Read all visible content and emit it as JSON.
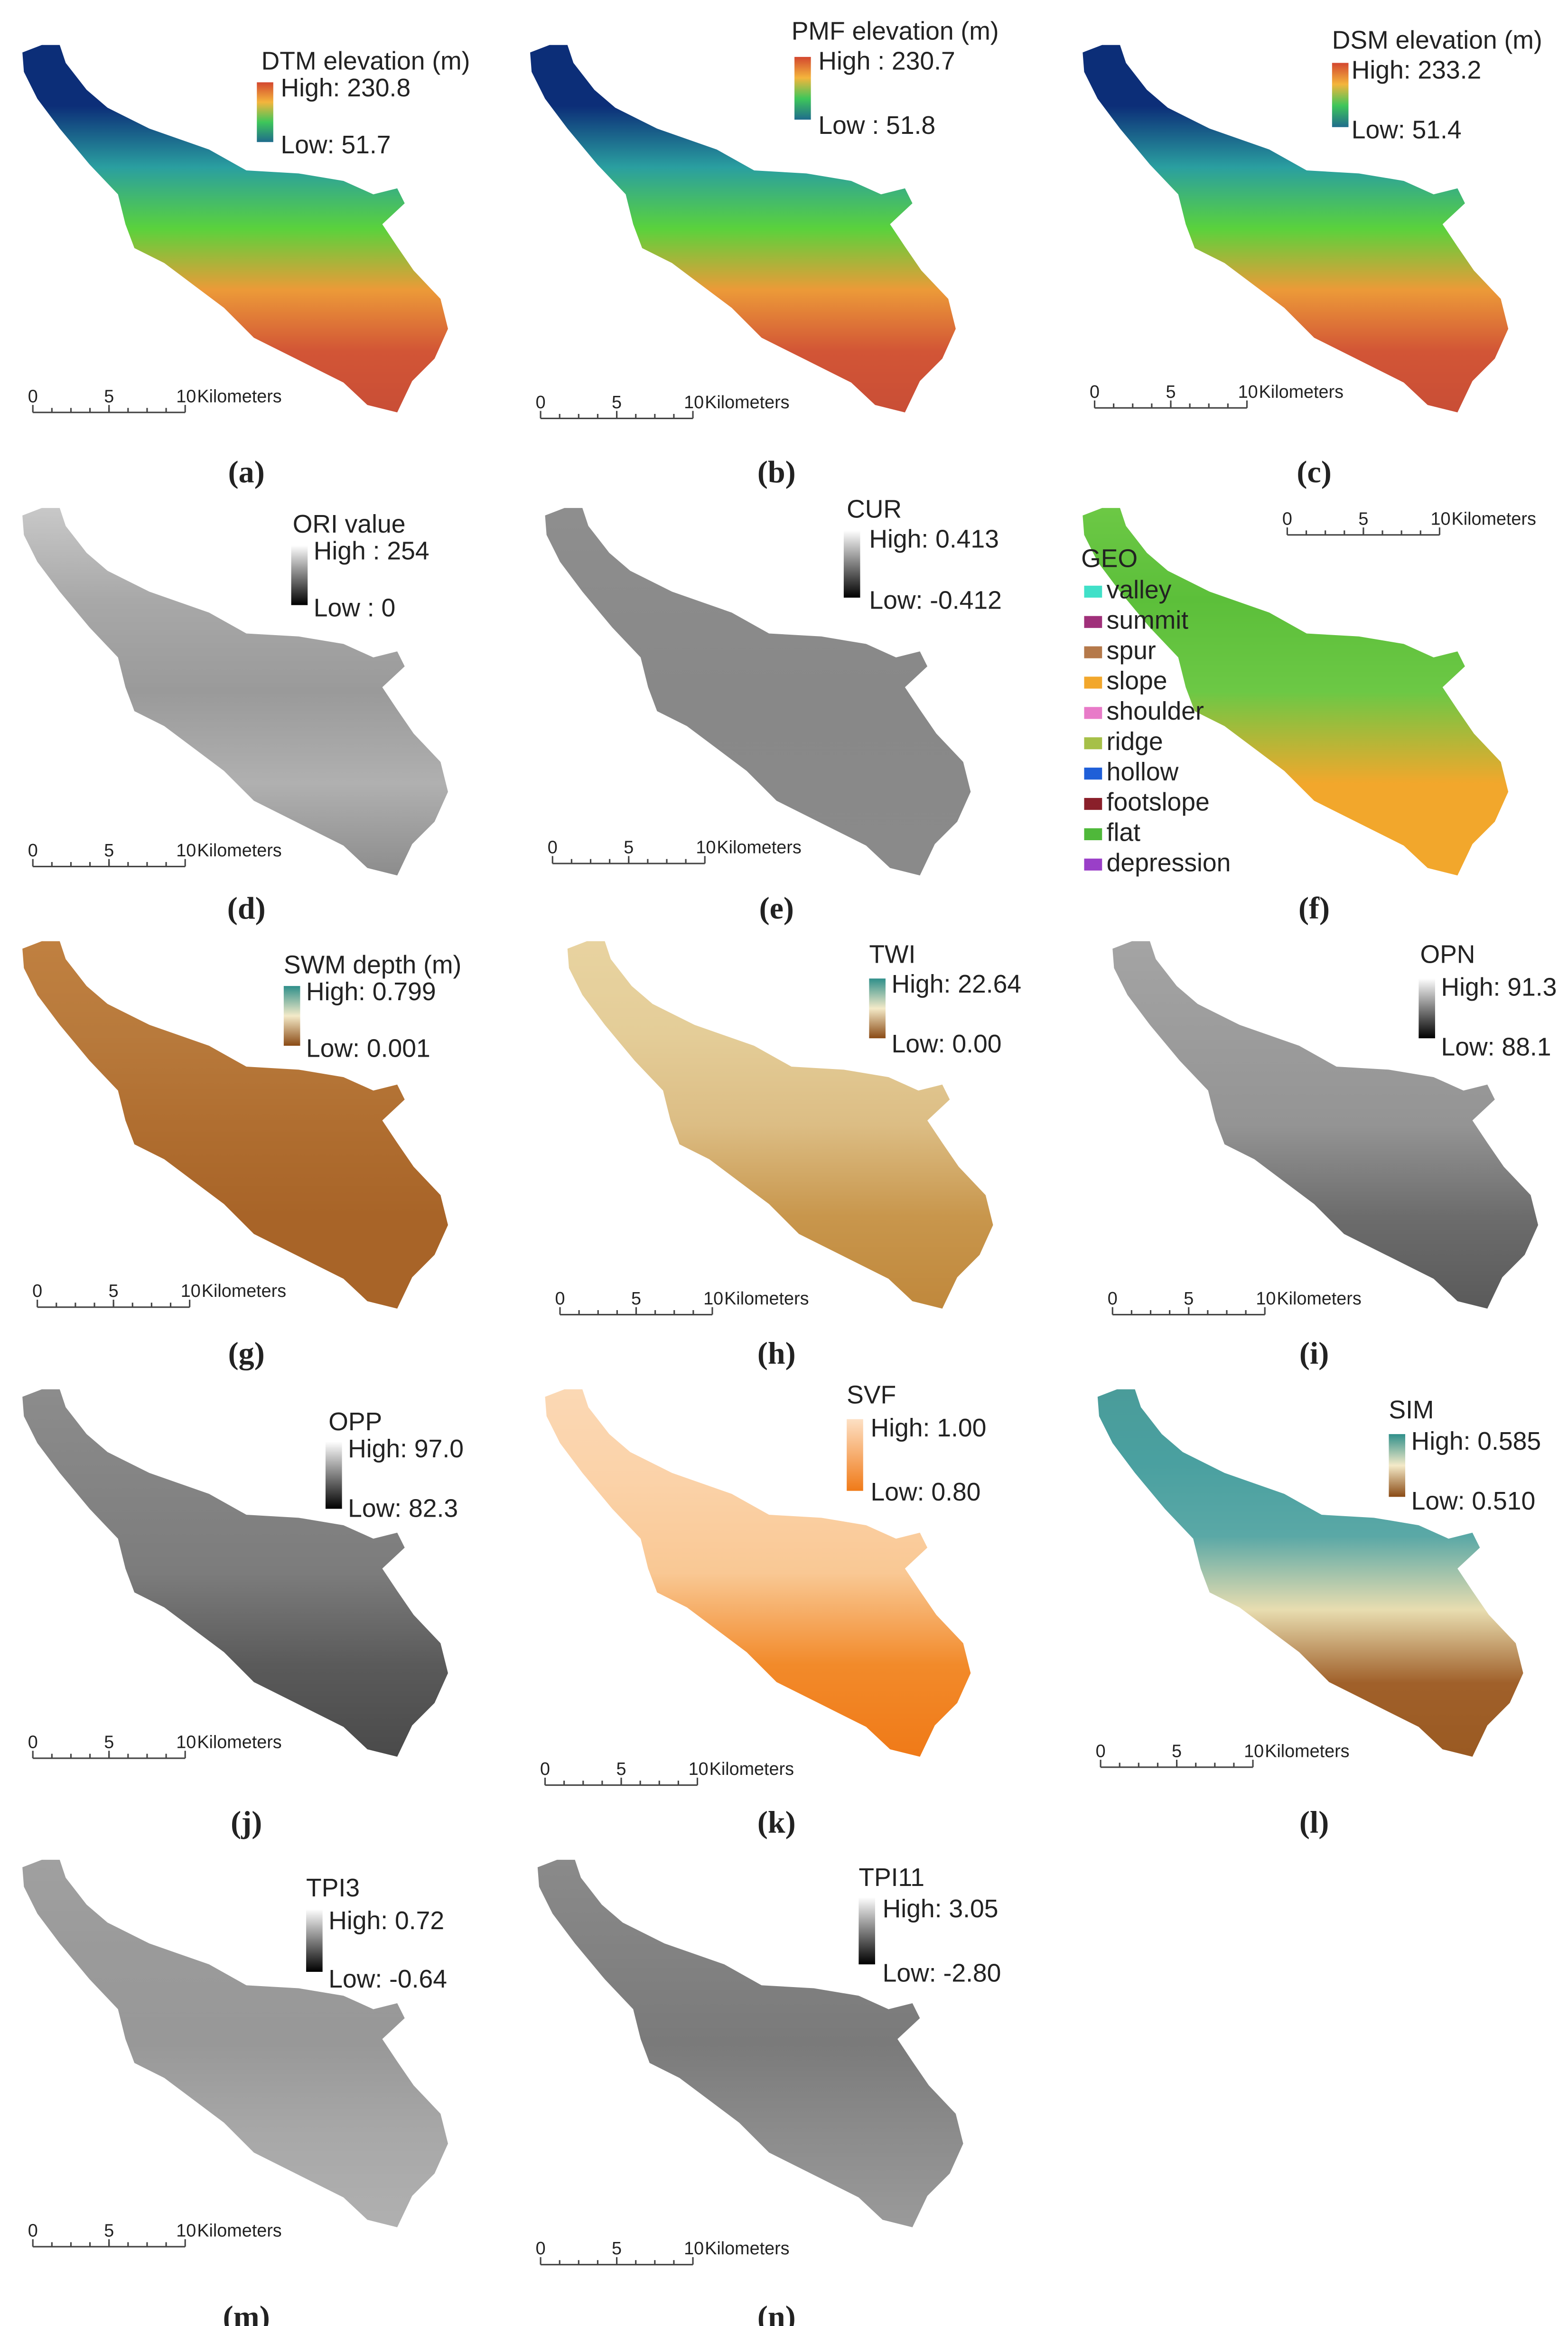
{
  "panels": [
    {
      "label": "(a)",
      "legend_title": "DTM elevation (m)",
      "high": "High: 230.8",
      "low": "Low: 51.7",
      "scale": [
        "0",
        "5",
        "10"
      ],
      "unit": "Kilometers",
      "ramp": [
        "#d3472f",
        "#f4b53c",
        "#3ec65a",
        "#1f6c8c"
      ],
      "map_colors": [
        "#0c2e78",
        "#0c2e78",
        "#2a9fa0",
        "#5ad23c",
        "#ec9a38",
        "#d25536",
        "#c94e36"
      ]
    },
    {
      "label": "(b)",
      "legend_title": "PMF elevation (m)",
      "high": "High : 230.7",
      "low": "Low : 51.8",
      "scale": [
        "0",
        "5",
        "10"
      ],
      "unit": "Kilometers",
      "ramp": [
        "#d3472f",
        "#f4b53c",
        "#3ec65a",
        "#1f6c8c"
      ],
      "map_colors": [
        "#0c2e78",
        "#0c2e78",
        "#2a9fa0",
        "#5ad23c",
        "#ec9a38",
        "#d25536",
        "#c94e36"
      ]
    },
    {
      "label": "(c)",
      "legend_title": "DSM elevation (m)",
      "high": "High: 233.2",
      "low": "Low: 51.4",
      "scale": [
        "0",
        "5",
        "10"
      ],
      "unit": "Kilometers",
      "ramp": [
        "#d3472f",
        "#f4b53c",
        "#3ec65a",
        "#1f6c8c"
      ],
      "map_colors": [
        "#0c2e78",
        "#0c2e78",
        "#2a9fa0",
        "#5ad23c",
        "#ec9a38",
        "#d25536",
        "#c94e36"
      ]
    },
    {
      "label": "(d)",
      "legend_title": "ORI value",
      "high": "High : 254",
      "low": "Low : 0",
      "scale": [
        "0",
        "5",
        "10"
      ],
      "unit": "Kilometers",
      "ramp": [
        "#ffffff",
        "#000000"
      ],
      "map_colors": [
        "#c8c8c8",
        "#a8a8a8",
        "#9a9a9a",
        "#b0b0b0",
        "#8c8c8c"
      ]
    },
    {
      "label": "(e)",
      "legend_title": "CUR",
      "high": "High: 0.413",
      "low": "Low: -0.412",
      "scale": [
        "0",
        "5",
        "10"
      ],
      "unit": "Kilometers",
      "ramp": [
        "#ffffff",
        "#000000"
      ],
      "map_colors": [
        "#8e8e8e",
        "#888888",
        "#8a8a8a"
      ]
    },
    {
      "label": "(f)",
      "legend_title": "GEO",
      "scale": [
        "0",
        "5",
        "10"
      ],
      "unit": "Kilometers",
      "map_colors": [
        "#6cc845",
        "#5cbf3a",
        "#6cc845",
        "#f2a72c",
        "#f2a72c"
      ],
      "classes": [
        {
          "name": "valley",
          "color": "#40e0c8"
        },
        {
          "name": "summit",
          "color": "#a0307a"
        },
        {
          "name": "spur",
          "color": "#b5794a"
        },
        {
          "name": "slope",
          "color": "#f2a72c"
        },
        {
          "name": "shoulder",
          "color": "#e87ac8"
        },
        {
          "name": "ridge",
          "color": "#a6c048"
        },
        {
          "name": "hollow",
          "color": "#1f5fd8"
        },
        {
          "name": "footslope",
          "color": "#8a1f2a"
        },
        {
          "name": "flat",
          "color": "#4fb83a"
        },
        {
          "name": "depression",
          "color": "#9a3fc8"
        }
      ]
    },
    {
      "label": "(g)",
      "legend_title": "SWM depth (m)",
      "high": "High: 0.799",
      "low": "Low: 0.001",
      "scale": [
        "0",
        "5",
        "10"
      ],
      "unit": "Kilometers",
      "ramp": [
        "#2f8f8a",
        "#f4eac8",
        "#8a4a14"
      ],
      "map_colors": [
        "#c08040",
        "#b87a3c",
        "#b06e30",
        "#a86428",
        "#a86428"
      ]
    },
    {
      "label": "(h)",
      "legend_title": "TWI",
      "high": "High: 22.64",
      "low": "Low: 0.00",
      "scale": [
        "0",
        "5",
        "10"
      ],
      "unit": "Kilometers",
      "ramp": [
        "#2f8f8a",
        "#f4eac8",
        "#8a4a14"
      ],
      "map_colors": [
        "#e8d3a0",
        "#e4cd98",
        "#dcbd84",
        "#c8964c",
        "#c0883c"
      ]
    },
    {
      "label": "(i)",
      "legend_title": "OPN",
      "high": "High: 91.3",
      "low": "Low: 88.1",
      "scale": [
        "0",
        "5",
        "10"
      ],
      "unit": "Kilometers",
      "ramp": [
        "#ffffff",
        "#000000"
      ],
      "map_colors": [
        "#a4a4a4",
        "#9c9c9c",
        "#949494",
        "#6c6c6c",
        "#5a5a5a"
      ]
    },
    {
      "label": "(j)",
      "legend_title": "OPP",
      "high": "High: 97.0",
      "low": "Low: 82.3",
      "scale": [
        "0",
        "5",
        "10"
      ],
      "unit": "Kilometers",
      "ramp": [
        "#ffffff",
        "#000000"
      ],
      "map_colors": [
        "#8c8c8c",
        "#848484",
        "#7c7c7c",
        "#5a5a5a",
        "#4a4a4a"
      ]
    },
    {
      "label": "(k)",
      "legend_title": "SVF",
      "high": "High: 1.00",
      "low": "Low: 0.80",
      "scale": [
        "0",
        "5",
        "10"
      ],
      "unit": "Kilometers",
      "ramp": [
        "#fde0c4",
        "#f07a18"
      ],
      "map_colors": [
        "#fbd8b4",
        "#fbd2a8",
        "#f9c894",
        "#f28a2a",
        "#f07a18"
      ]
    },
    {
      "label": "(l)",
      "legend_title": "SIM",
      "high": "High: 0.585",
      "low": "Low: 0.510",
      "scale": [
        "0",
        "5",
        "10"
      ],
      "unit": "Kilometers",
      "ramp": [
        "#2f8f8a",
        "#f4eac8",
        "#8a4a14"
      ],
      "map_colors": [
        "#4a9c9a",
        "#4aa0a0",
        "#5aa8a6",
        "#e8ddb0",
        "#a0602a",
        "#9a5a22"
      ]
    },
    {
      "label": "(m)",
      "legend_title": "TPI3",
      "high": "High: 0.72",
      "low": "Low: -0.64",
      "scale": [
        "0",
        "5",
        "10"
      ],
      "unit": "Kilometers",
      "ramp": [
        "#ffffff",
        "#000000"
      ],
      "map_colors": [
        "#a0a0a0",
        "#9a9a9a",
        "#989898",
        "#a8a8a8",
        "#b0b0b0"
      ]
    },
    {
      "label": "(n)",
      "legend_title": "TPI11",
      "high": "High: 3.05",
      "low": "Low: -2.80",
      "scale": [
        "0",
        "5",
        "10"
      ],
      "unit": "Kilometers",
      "ramp": [
        "#ffffff",
        "#000000"
      ],
      "map_colors": [
        "#8a8a8a",
        "#828282",
        "#7a7a7a",
        "#8c8c8c",
        "#9a9a9a"
      ]
    }
  ]
}
